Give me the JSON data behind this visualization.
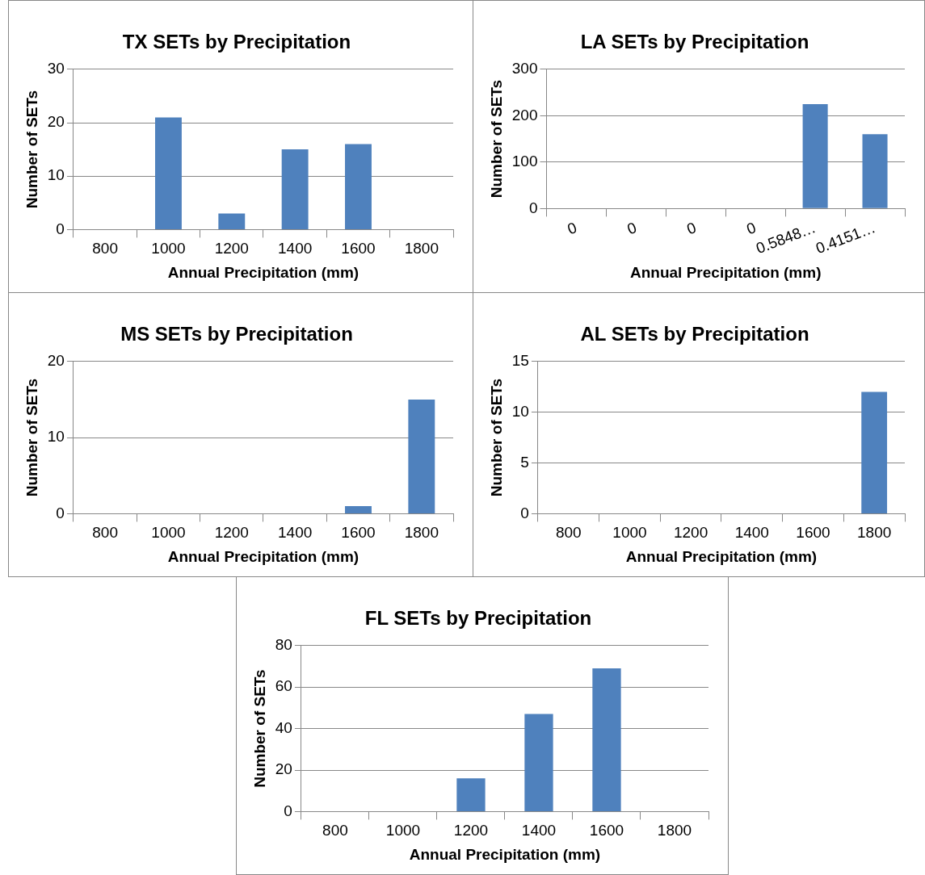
{
  "chart_data": [
    {
      "type": "bar",
      "title": "TX SETs by Precipitation",
      "xlabel": "Annual Precipitation (mm)",
      "ylabel": "Number of SETs",
      "categories": [
        "800",
        "1000",
        "1200",
        "1400",
        "1600",
        "1800"
      ],
      "values": [
        0,
        21,
        3,
        15,
        16,
        0
      ],
      "color": "#4f81bd",
      "ylim": [
        0,
        30
      ],
      "yticks": [
        0,
        10,
        20,
        30
      ],
      "grid": "y"
    },
    {
      "type": "bar",
      "title": "LA SETs by Precipitation",
      "xlabel": "Annual Precipitation (mm)",
      "ylabel": "Number of SETs",
      "categories": [
        "0",
        "0",
        "0",
        "0",
        "0.5848…",
        "0.4151…"
      ],
      "values": [
        0,
        0,
        0,
        0,
        225,
        160
      ],
      "color": "#4f81bd",
      "ylim": [
        0,
        300
      ],
      "yticks": [
        0,
        100,
        200,
        300
      ],
      "grid": "y"
    },
    {
      "type": "bar",
      "title": "MS SETs by Precipitation",
      "xlabel": "Annual Precipitation (mm)",
      "ylabel": "Number of SETs",
      "categories": [
        "800",
        "1000",
        "1200",
        "1400",
        "1600",
        "1800"
      ],
      "values": [
        0,
        0,
        0,
        0,
        1,
        15
      ],
      "color": "#4f81bd",
      "ylim": [
        0,
        20
      ],
      "yticks": [
        0,
        10,
        20
      ],
      "grid": "y"
    },
    {
      "type": "bar",
      "title": "AL SETs by Precipitation",
      "xlabel": "Annual Precipitation (mm)",
      "ylabel": "Number of SETs",
      "categories": [
        "800",
        "1000",
        "1200",
        "1400",
        "1600",
        "1800"
      ],
      "values": [
        0,
        0,
        0,
        0,
        0,
        12
      ],
      "color": "#4f81bd",
      "ylim": [
        0,
        15
      ],
      "yticks": [
        0,
        5,
        10,
        15
      ],
      "grid": "y"
    },
    {
      "type": "bar",
      "title": "FL SETs by Precipitation",
      "xlabel": "Annual Precipitation (mm)",
      "ylabel": "Number of SETs",
      "categories": [
        "800",
        "1000",
        "1200",
        "1400",
        "1600",
        "1800"
      ],
      "values": [
        0,
        0,
        16,
        47,
        69,
        0
      ],
      "color": "#4f81bd",
      "ylim": [
        0,
        80
      ],
      "yticks": [
        0,
        20,
        40,
        60,
        80
      ],
      "grid": "y"
    }
  ]
}
